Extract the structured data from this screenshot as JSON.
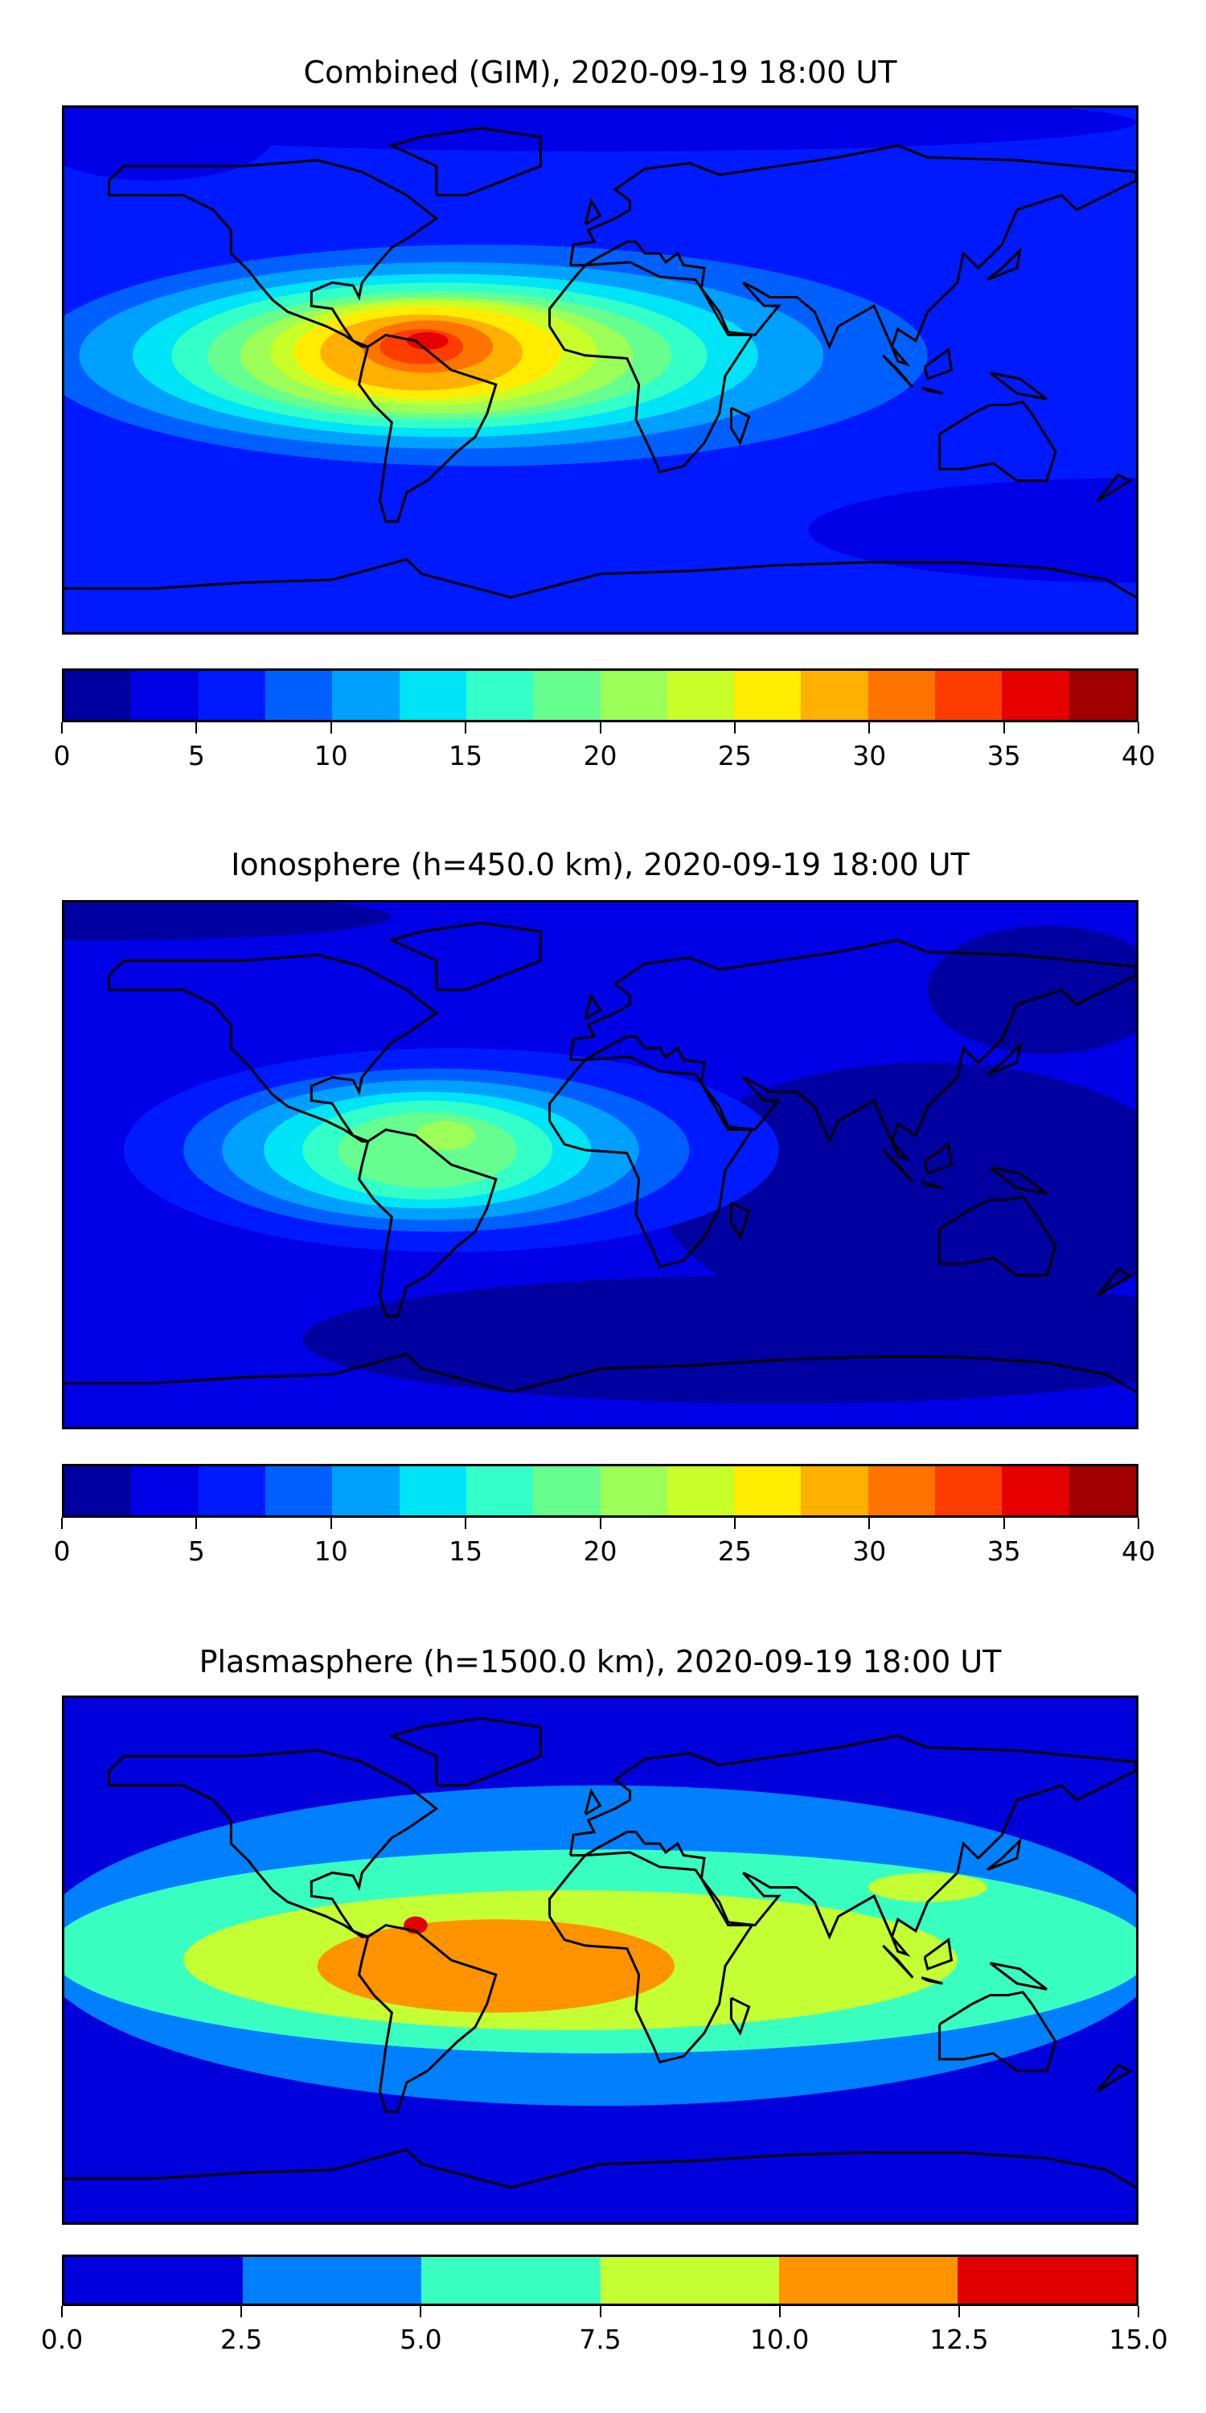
{
  "chart_data": [
    {
      "type": "heatmap",
      "title": "Combined (GIM), 2020-09-19 18:00 UT",
      "xlim": [
        -180,
        180
      ],
      "ylim": [
        -90,
        90
      ],
      "colorbar": {
        "levels": [
          0,
          2.5,
          5,
          7.5,
          10,
          12.5,
          15,
          17.5,
          20,
          22.5,
          25,
          27.5,
          30,
          32.5,
          35,
          37.5,
          40
        ],
        "colors": [
          "#0000a0",
          "#0000e6",
          "#001aff",
          "#0060ff",
          "#00a0ff",
          "#00e4f8",
          "#33ffc8",
          "#66ff8f",
          "#9cff58",
          "#c8ff28",
          "#ffec00",
          "#ffb000",
          "#ff7400",
          "#ff3c00",
          "#e60000",
          "#a00000"
        ],
        "ticks": [
          "0",
          "5",
          "10",
          "15",
          "20",
          "25",
          "30",
          "35",
          "40"
        ]
      },
      "peak": {
        "lon": -55,
        "lat": 5,
        "value_range": "32.5-35"
      }
    },
    {
      "type": "heatmap",
      "title": "Ionosphere  (h=450.0 km), 2020-09-19 18:00 UT",
      "xlim": [
        -180,
        180
      ],
      "ylim": [
        -90,
        90
      ],
      "colorbar": {
        "levels": [
          0,
          2.5,
          5,
          7.5,
          10,
          12.5,
          15,
          17.5,
          20,
          22.5,
          25,
          27.5,
          30,
          32.5,
          35,
          37.5,
          40
        ],
        "colors": [
          "#0000a0",
          "#0000e6",
          "#001aff",
          "#0060ff",
          "#00a0ff",
          "#00e4f8",
          "#33ffc8",
          "#66ff8f",
          "#9cff58",
          "#c8ff28",
          "#ffec00",
          "#ffb000",
          "#ff7400",
          "#ff3c00",
          "#e60000",
          "#a00000"
        ],
        "ticks": [
          "0",
          "5",
          "10",
          "15",
          "20",
          "25",
          "30",
          "35",
          "40"
        ]
      },
      "peak": {
        "lon": -55,
        "lat": 0,
        "value_range": "20-22.5"
      }
    },
    {
      "type": "heatmap",
      "title": "Plasmasphere (h=1500.0 km), 2020-09-19 18:00 UT",
      "xlim": [
        -180,
        180
      ],
      "ylim": [
        -90,
        90
      ],
      "colorbar": {
        "levels": [
          0,
          2.5,
          5,
          7.5,
          10,
          12.5,
          15
        ],
        "colors": [
          "#0000dc",
          "#0080ff",
          "#38ffc0",
          "#c4ff34",
          "#ff9400",
          "#e00000"
        ],
        "ticks": [
          "0.0",
          "2.5",
          "5.0",
          "7.5",
          "10.0",
          "12.5",
          "15.0"
        ]
      },
      "peak": {
        "lon": -62,
        "lat": 12,
        "value_range": "12.5-15"
      }
    }
  ]
}
